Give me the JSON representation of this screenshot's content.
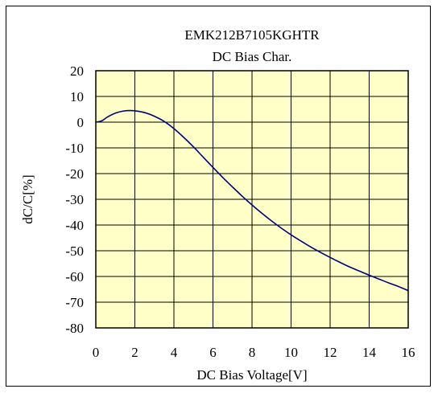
{
  "chart_data": {
    "type": "line",
    "title": "EMK212B7105KGHTR",
    "subtitle": "DC Bias Char.",
    "xlabel": "DC Bias Voltage[V]",
    "ylabel": "dC/C[%]",
    "xlim": [
      0,
      16
    ],
    "ylim": [
      -80,
      20
    ],
    "xticks": [
      0,
      2,
      4,
      6,
      8,
      10,
      12,
      14,
      16
    ],
    "yticks": [
      20,
      10,
      0,
      -10,
      -20,
      -30,
      -40,
      -50,
      -60,
      -70,
      -80
    ],
    "grid": true,
    "plot_background": "#ffffc8",
    "series": [
      {
        "color": "#000080",
        "x": [
          0,
          0.3,
          0.6,
          1.0,
          1.4,
          1.8,
          2.2,
          2.6,
          3.0,
          3.5,
          4.0,
          4.5,
          5.0,
          5.5,
          6.0,
          6.5,
          7.0,
          7.5,
          8.0,
          8.5,
          9.0,
          9.5,
          10.0,
          10.5,
          11.0,
          11.5,
          12.0,
          12.5,
          13.0,
          13.5,
          14.0,
          14.5,
          15.0,
          15.5,
          16.0
        ],
        "y": [
          0,
          0.5,
          2.0,
          3.5,
          4.3,
          4.5,
          4.2,
          3.5,
          2.3,
          0.3,
          -2.5,
          -5.9,
          -9.6,
          -13.6,
          -17.6,
          -21.5,
          -25.2,
          -28.8,
          -32.2,
          -35.4,
          -38.4,
          -41.2,
          -43.8,
          -46.2,
          -48.5,
          -50.6,
          -52.6,
          -54.5,
          -56.3,
          -57.9,
          -59.5,
          -61.0,
          -62.5,
          -63.9,
          -65.5
        ]
      }
    ]
  }
}
